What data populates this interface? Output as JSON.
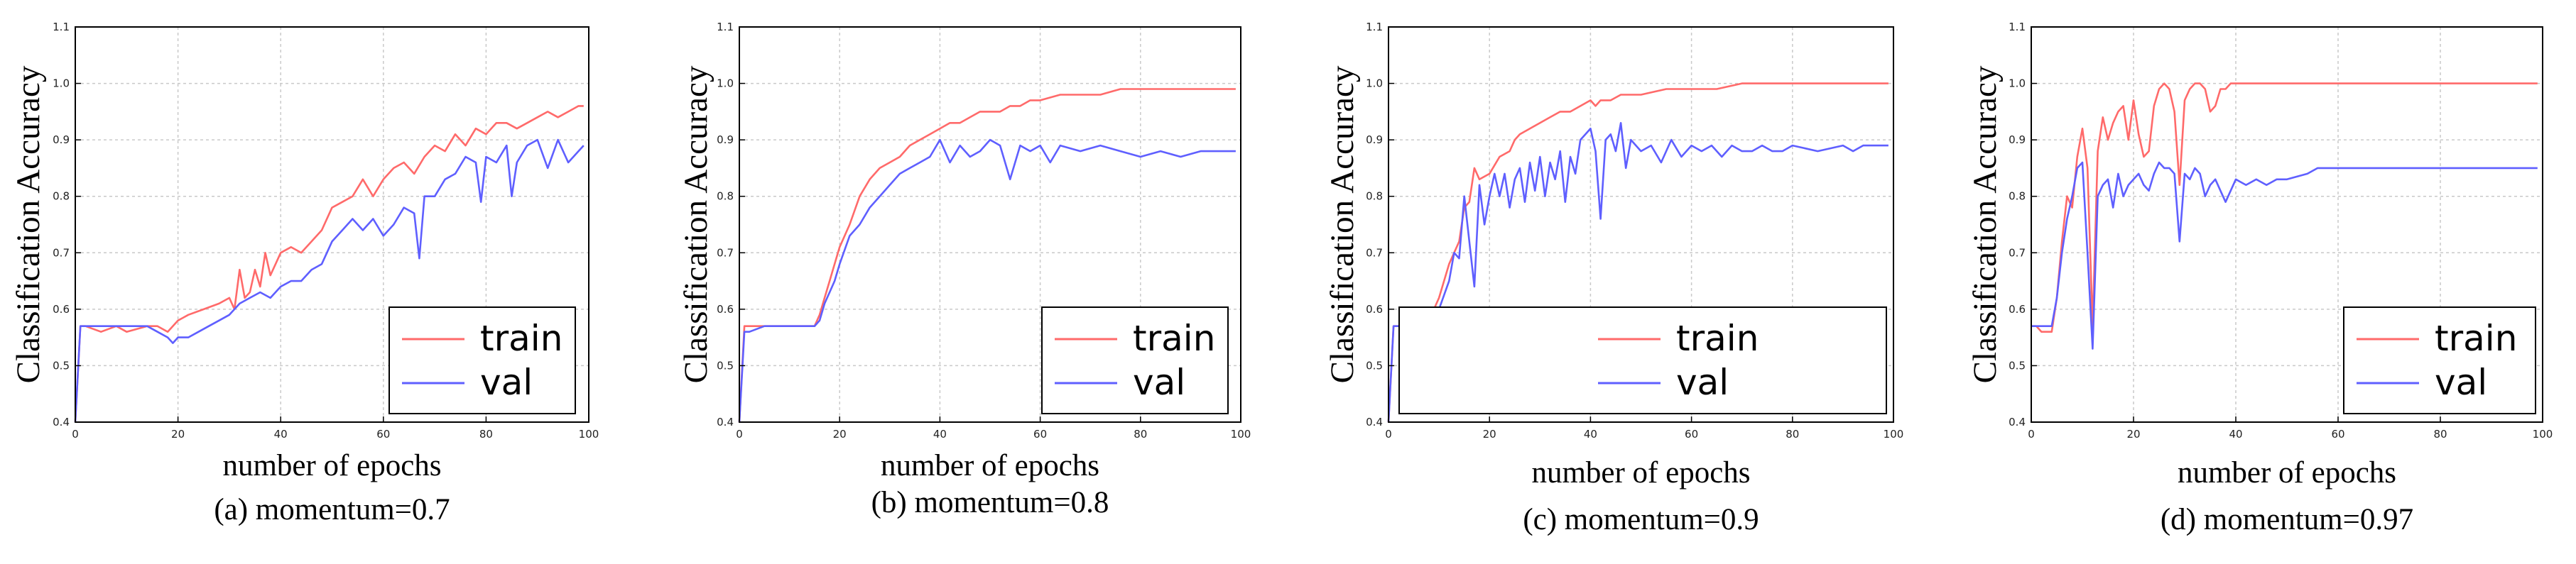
{
  "colors": {
    "train": "#ff6a6a",
    "val": "#5f5fff",
    "grid": "#c9c9c9"
  },
  "chart_data": [
    {
      "type": "line",
      "caption": "(a) momentum=0.7",
      "xlabel": "number of epochs",
      "ylabel": "Classification Accuracy",
      "xlim": [
        0,
        100
      ],
      "ylim": [
        0.4,
        1.1
      ],
      "xticks": [
        "0",
        "20",
        "40",
        "60",
        "80",
        "100"
      ],
      "yticks": [
        "0.4",
        "0.5",
        "0.6",
        "0.7",
        "0.8",
        "0.9",
        "1.0",
        "1.1"
      ],
      "grid": true,
      "legend": "bottom-right",
      "series": [
        {
          "name": "train",
          "x": [
            0,
            1,
            2,
            5,
            8,
            10,
            14,
            16,
            18,
            20,
            22,
            25,
            28,
            30,
            31,
            32,
            33,
            34,
            35,
            36,
            37,
            38,
            39,
            40,
            42,
            44,
            46,
            48,
            50,
            52,
            54,
            56,
            58,
            60,
            62,
            64,
            66,
            68,
            70,
            72,
            74,
            76,
            78,
            80,
            82,
            84,
            86,
            88,
            90,
            92,
            94,
            96,
            98,
            99
          ],
          "y": [
            0.4,
            0.57,
            0.57,
            0.56,
            0.57,
            0.56,
            0.57,
            0.57,
            0.56,
            0.58,
            0.59,
            0.6,
            0.61,
            0.62,
            0.6,
            0.67,
            0.62,
            0.63,
            0.67,
            0.64,
            0.7,
            0.66,
            0.68,
            0.7,
            0.71,
            0.7,
            0.72,
            0.74,
            0.78,
            0.79,
            0.8,
            0.83,
            0.8,
            0.83,
            0.85,
            0.86,
            0.84,
            0.87,
            0.89,
            0.88,
            0.91,
            0.89,
            0.92,
            0.91,
            0.93,
            0.93,
            0.92,
            0.93,
            0.94,
            0.95,
            0.94,
            0.95,
            0.96,
            0.96
          ]
        },
        {
          "name": "val",
          "x": [
            0,
            1,
            2,
            5,
            8,
            10,
            14,
            16,
            18,
            19,
            20,
            22,
            24,
            26,
            28,
            30,
            32,
            34,
            36,
            38,
            40,
            42,
            44,
            46,
            48,
            50,
            52,
            54,
            56,
            58,
            60,
            62,
            64,
            66,
            67,
            68,
            70,
            72,
            74,
            76,
            78,
            79,
            80,
            82,
            84,
            85,
            86,
            88,
            90,
            92,
            94,
            96,
            98,
            99
          ],
          "y": [
            0.4,
            0.57,
            0.57,
            0.57,
            0.57,
            0.57,
            0.57,
            0.56,
            0.55,
            0.54,
            0.55,
            0.55,
            0.56,
            0.57,
            0.58,
            0.59,
            0.61,
            0.62,
            0.63,
            0.62,
            0.64,
            0.65,
            0.65,
            0.67,
            0.68,
            0.72,
            0.74,
            0.76,
            0.74,
            0.76,
            0.73,
            0.75,
            0.78,
            0.77,
            0.69,
            0.8,
            0.8,
            0.83,
            0.84,
            0.87,
            0.86,
            0.79,
            0.87,
            0.86,
            0.89,
            0.8,
            0.86,
            0.89,
            0.9,
            0.85,
            0.9,
            0.86,
            0.88,
            0.89
          ]
        }
      ]
    },
    {
      "type": "line",
      "caption": "(b) momentum=0.8",
      "xlabel": "number of epochs",
      "ylabel": "Classification Accuracy",
      "xlim": [
        0,
        100
      ],
      "ylim": [
        0.4,
        1.1
      ],
      "xticks": [
        "0",
        "20",
        "40",
        "60",
        "80",
        "100"
      ],
      "yticks": [
        "0.4",
        "0.5",
        "0.6",
        "0.7",
        "0.8",
        "0.9",
        "1.0",
        "1.1"
      ],
      "grid": true,
      "legend": "bottom-right",
      "series": [
        {
          "name": "train",
          "x": [
            0,
            1,
            2,
            5,
            10,
            15,
            16,
            17,
            18,
            19,
            20,
            22,
            24,
            26,
            28,
            30,
            32,
            34,
            36,
            38,
            40,
            42,
            44,
            46,
            48,
            50,
            52,
            54,
            56,
            58,
            60,
            64,
            68,
            72,
            76,
            80,
            84,
            88,
            92,
            96,
            99
          ],
          "y": [
            0.4,
            0.57,
            0.57,
            0.57,
            0.57,
            0.57,
            0.59,
            0.62,
            0.65,
            0.68,
            0.71,
            0.75,
            0.8,
            0.83,
            0.85,
            0.86,
            0.87,
            0.89,
            0.9,
            0.91,
            0.92,
            0.93,
            0.93,
            0.94,
            0.95,
            0.95,
            0.95,
            0.96,
            0.96,
            0.97,
            0.97,
            0.98,
            0.98,
            0.98,
            0.99,
            0.99,
            0.99,
            0.99,
            0.99,
            0.99,
            0.99
          ]
        },
        {
          "name": "val",
          "x": [
            0,
            1,
            2,
            5,
            10,
            15,
            16,
            17,
            18,
            19,
            20,
            22,
            24,
            26,
            28,
            30,
            32,
            34,
            36,
            38,
            40,
            42,
            44,
            46,
            48,
            50,
            52,
            54,
            56,
            58,
            60,
            62,
            64,
            68,
            72,
            76,
            80,
            84,
            88,
            92,
            96,
            99
          ],
          "y": [
            0.4,
            0.56,
            0.56,
            0.57,
            0.57,
            0.57,
            0.58,
            0.61,
            0.63,
            0.65,
            0.68,
            0.73,
            0.75,
            0.78,
            0.8,
            0.82,
            0.84,
            0.85,
            0.86,
            0.87,
            0.9,
            0.86,
            0.89,
            0.87,
            0.88,
            0.9,
            0.89,
            0.83,
            0.89,
            0.88,
            0.89,
            0.86,
            0.89,
            0.88,
            0.89,
            0.88,
            0.87,
            0.88,
            0.87,
            0.88,
            0.88,
            0.88
          ]
        }
      ]
    },
    {
      "type": "line",
      "caption": "(c) momentum=0.9",
      "xlabel": "number of epochs",
      "ylabel": "Classification Accuracy",
      "xlim": [
        0,
        100
      ],
      "ylim": [
        0.4,
        1.1
      ],
      "xticks": [
        "0",
        "20",
        "40",
        "60",
        "80",
        "100"
      ],
      "yticks": [
        "0.4",
        "0.5",
        "0.6",
        "0.7",
        "0.8",
        "0.9",
        "1.0",
        "1.1"
      ],
      "grid": true,
      "legend": "bottom-right",
      "series": [
        {
          "name": "train",
          "x": [
            0,
            1,
            2,
            5,
            8,
            10,
            12,
            14,
            15,
            16,
            17,
            18,
            20,
            22,
            24,
            25,
            26,
            28,
            30,
            32,
            34,
            36,
            38,
            40,
            41,
            42,
            44,
            46,
            48,
            50,
            55,
            60,
            65,
            70,
            75,
            80,
            85,
            90,
            95,
            99
          ],
          "y": [
            0.4,
            0.57,
            0.57,
            0.57,
            0.58,
            0.62,
            0.68,
            0.72,
            0.78,
            0.79,
            0.85,
            0.83,
            0.84,
            0.87,
            0.88,
            0.9,
            0.91,
            0.92,
            0.93,
            0.94,
            0.95,
            0.95,
            0.96,
            0.97,
            0.96,
            0.97,
            0.97,
            0.98,
            0.98,
            0.98,
            0.99,
            0.99,
            0.99,
            1.0,
            1.0,
            1.0,
            1.0,
            1.0,
            1.0,
            1.0
          ]
        },
        {
          "name": "val",
          "x": [
            0,
            1,
            2,
            5,
            8,
            10,
            12,
            13,
            14,
            15,
            16,
            17,
            18,
            19,
            20,
            21,
            22,
            23,
            24,
            25,
            26,
            27,
            28,
            29,
            30,
            31,
            32,
            33,
            34,
            35,
            36,
            37,
            38,
            39,
            40,
            41,
            42,
            43,
            44,
            45,
            46,
            47,
            48,
            50,
            52,
            54,
            56,
            58,
            60,
            62,
            64,
            66,
            68,
            70,
            72,
            74,
            76,
            78,
            80,
            85,
            90,
            92,
            94,
            96,
            99
          ],
          "y": [
            0.4,
            0.57,
            0.57,
            0.56,
            0.57,
            0.6,
            0.65,
            0.7,
            0.69,
            0.8,
            0.72,
            0.64,
            0.82,
            0.75,
            0.8,
            0.84,
            0.8,
            0.84,
            0.78,
            0.83,
            0.85,
            0.79,
            0.86,
            0.81,
            0.87,
            0.8,
            0.86,
            0.83,
            0.88,
            0.79,
            0.87,
            0.84,
            0.9,
            0.91,
            0.92,
            0.88,
            0.76,
            0.9,
            0.91,
            0.88,
            0.93,
            0.85,
            0.9,
            0.88,
            0.89,
            0.86,
            0.9,
            0.87,
            0.89,
            0.88,
            0.89,
            0.87,
            0.89,
            0.88,
            0.88,
            0.89,
            0.88,
            0.88,
            0.89,
            0.88,
            0.89,
            0.88,
            0.89,
            0.89,
            0.89
          ]
        }
      ]
    },
    {
      "type": "line",
      "caption": "(d) momentum=0.97",
      "xlabel": "number of epochs",
      "ylabel": "Classification Accuracy",
      "xlim": [
        0,
        100
      ],
      "ylim": [
        0.4,
        1.1
      ],
      "xticks": [
        "0",
        "20",
        "40",
        "60",
        "80",
        "100"
      ],
      "yticks": [
        "0.4",
        "0.5",
        "0.6",
        "0.7",
        "0.8",
        "0.9",
        "1.0",
        "1.1"
      ],
      "grid": true,
      "legend": "bottom-right",
      "series": [
        {
          "name": "train",
          "x": [
            0,
            1,
            2,
            4,
            5,
            6,
            7,
            8,
            9,
            10,
            11,
            12,
            13,
            14,
            15,
            16,
            17,
            18,
            19,
            20,
            21,
            22,
            23,
            24,
            25,
            26,
            27,
            28,
            29,
            30,
            31,
            32,
            33,
            34,
            35,
            36,
            37,
            38,
            39,
            40,
            45,
            50,
            60,
            70,
            80,
            90,
            99
          ],
          "y": [
            0.57,
            0.57,
            0.56,
            0.56,
            0.62,
            0.72,
            0.8,
            0.78,
            0.87,
            0.92,
            0.85,
            0.57,
            0.88,
            0.94,
            0.9,
            0.93,
            0.95,
            0.96,
            0.9,
            0.97,
            0.91,
            0.87,
            0.88,
            0.96,
            0.99,
            1.0,
            0.99,
            0.95,
            0.82,
            0.97,
            0.99,
            1.0,
            1.0,
            0.99,
            0.95,
            0.96,
            0.99,
            0.99,
            1.0,
            1.0,
            1.0,
            1.0,
            1.0,
            1.0,
            1.0,
            1.0,
            1.0
          ]
        },
        {
          "name": "val",
          "x": [
            0,
            1,
            2,
            4,
            5,
            6,
            7,
            8,
            9,
            10,
            11,
            12,
            13,
            14,
            15,
            16,
            17,
            18,
            19,
            20,
            21,
            22,
            23,
            24,
            25,
            26,
            27,
            28,
            29,
            30,
            31,
            32,
            33,
            34,
            35,
            36,
            37,
            38,
            40,
            42,
            44,
            46,
            48,
            50,
            54,
            56,
            60,
            70,
            80,
            90,
            99
          ],
          "y": [
            0.57,
            0.57,
            0.57,
            0.57,
            0.62,
            0.7,
            0.76,
            0.8,
            0.85,
            0.86,
            0.7,
            0.53,
            0.8,
            0.82,
            0.83,
            0.78,
            0.84,
            0.8,
            0.82,
            0.83,
            0.84,
            0.82,
            0.81,
            0.84,
            0.86,
            0.85,
            0.85,
            0.84,
            0.72,
            0.84,
            0.83,
            0.85,
            0.84,
            0.8,
            0.82,
            0.83,
            0.81,
            0.79,
            0.83,
            0.82,
            0.83,
            0.82,
            0.83,
            0.83,
            0.84,
            0.85,
            0.85,
            0.85,
            0.85,
            0.85,
            0.85
          ]
        }
      ]
    }
  ]
}
